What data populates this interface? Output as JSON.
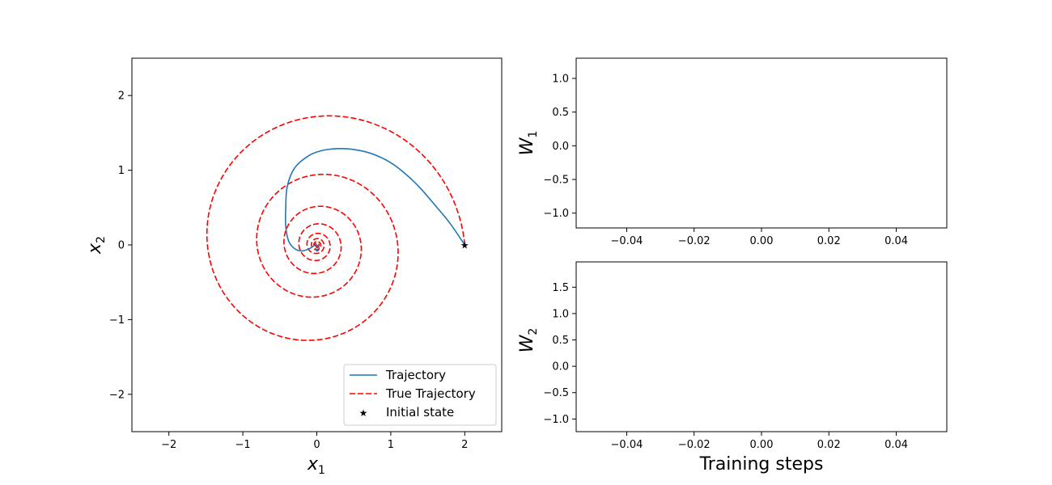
{
  "chart_data": [
    {
      "type": "line",
      "panel": "phase-portrait",
      "xlim": [
        -2.5,
        2.5
      ],
      "ylim": [
        -2.5,
        2.5
      ],
      "xticks": [
        -2,
        -1,
        0,
        1,
        2
      ],
      "yticks": [
        -2,
        -1,
        0,
        1,
        2
      ],
      "xlabel": "x1",
      "ylabel": "x2",
      "legend_position": "lower-right",
      "series": [
        {
          "name": "Trajectory",
          "style": "solid",
          "color": "#1f77b4",
          "points": [
            [
              2.0,
              0.0
            ],
            [
              1.8,
              0.29
            ],
            [
              1.6,
              0.53
            ],
            [
              1.4,
              0.76
            ],
            [
              1.2,
              0.95
            ],
            [
              1.0,
              1.1
            ],
            [
              0.8,
              1.2
            ],
            [
              0.6,
              1.26
            ],
            [
              0.35,
              1.29
            ],
            [
              0.1,
              1.27
            ],
            [
              -0.1,
              1.2
            ],
            [
              -0.3,
              1.03
            ],
            [
              -0.4,
              0.78
            ],
            [
              -0.42,
              0.5
            ],
            [
              -0.42,
              0.25
            ],
            [
              -0.38,
              0.05
            ],
            [
              -0.3,
              -0.05
            ],
            [
              -0.2,
              -0.08
            ],
            [
              -0.1,
              -0.05
            ],
            [
              -0.02,
              0.0
            ],
            [
              0.02,
              -0.02
            ],
            [
              0.03,
              -0.06
            ],
            [
              0.0,
              -0.08
            ],
            [
              -0.02,
              -0.04
            ]
          ]
        },
        {
          "name": "True Trajectory",
          "style": "dashed",
          "color": "#ff0000",
          "spiral": {
            "x0": 2.0,
            "y0": 0.0,
            "omega": 1.0,
            "sigma": -0.096,
            "t_max": 50
          }
        },
        {
          "name": "Initial state",
          "style": "marker",
          "marker": "star",
          "color": "#000000",
          "points": [
            [
              2.0,
              0.0
            ]
          ]
        }
      ]
    },
    {
      "type": "line",
      "panel": "W1",
      "xlim": [
        -0.055,
        0.055
      ],
      "ylim": [
        -1.22,
        1.3
      ],
      "xticks": [
        -0.04,
        -0.02,
        0.0,
        0.02,
        0.04
      ],
      "xtick_labels": [
        "−0.04",
        "−0.02",
        "0.00",
        "0.02",
        "0.04"
      ],
      "yticks": [
        -1.0,
        -0.5,
        0.0,
        0.5,
        1.0
      ],
      "ytick_labels": [
        "−1.0",
        "−0.5",
        "0.0",
        "0.5",
        "1.0"
      ],
      "xlabel": "",
      "ylabel": "W1",
      "series": []
    },
    {
      "type": "line",
      "panel": "W2",
      "xlim": [
        -0.055,
        0.055
      ],
      "ylim": [
        -1.24,
        1.98
      ],
      "xticks": [
        -0.04,
        -0.02,
        0.0,
        0.02,
        0.04
      ],
      "xtick_labels": [
        "−0.04",
        "−0.02",
        "0.00",
        "0.02",
        "0.04"
      ],
      "yticks": [
        -1.0,
        -0.5,
        0.0,
        0.5,
        1.0,
        1.5
      ],
      "ytick_labels": [
        "−1.0",
        "−0.5",
        "0.0",
        "0.5",
        "1.0",
        "1.5"
      ],
      "xlabel": "Training steps",
      "ylabel": "W2",
      "series": []
    }
  ],
  "labels": {
    "x1_main": "x",
    "x1_sub": "1",
    "x2_main": "x",
    "x2_sub": "2",
    "w1_main": "W",
    "w1_sub": "1",
    "w2_main": "W",
    "w2_sub": "2",
    "training_steps": "Training steps",
    "main_xtick_labels": [
      "−2",
      "−1",
      "0",
      "1",
      "2"
    ],
    "main_ytick_labels": [
      "−2",
      "−1",
      "0",
      "1",
      "2"
    ]
  },
  "legend": {
    "items": [
      "Trajectory",
      "True Trajectory",
      "Initial state"
    ]
  }
}
